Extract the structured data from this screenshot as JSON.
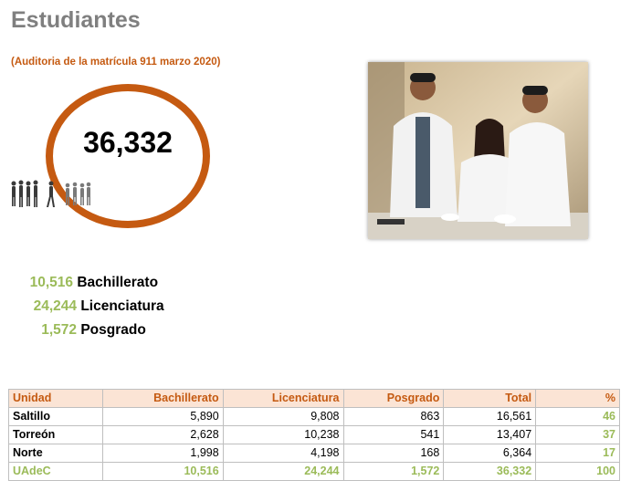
{
  "header": {
    "title": "Estudiantes",
    "subtitle": "(Auditoria de la matrícula 911 marzo 2020)"
  },
  "kpi": {
    "total": "36,332"
  },
  "icons": {
    "people": "walking-people-icon",
    "photo": "lab-students-photo"
  },
  "colors": {
    "accent_orange": "#c55a11",
    "accent_green": "#9bbb59",
    "header_fill": "#fbe4d5"
  },
  "summary": [
    {
      "value": "10,516",
      "label": "Bachillerato"
    },
    {
      "value": "24,244",
      "label": "Licenciatura"
    },
    {
      "value": "1,572",
      "label": "Posgrado"
    }
  ],
  "table": {
    "headers": [
      "Unidad",
      "Bachillerato",
      "Licenciatura",
      "Posgrado",
      "Total",
      "%"
    ],
    "rows": [
      [
        "Saltillo",
        "5,890",
        "9,808",
        "863",
        "16,561",
        "46"
      ],
      [
        "Torreón",
        "2,628",
        "10,238",
        "541",
        "13,407",
        "37"
      ],
      [
        "Norte",
        "1,998",
        "4,198",
        "168",
        "6,364",
        "17"
      ]
    ],
    "total_row": [
      "UAdeC",
      "10,516",
      "24,244",
      "1,572",
      "36,332",
      "100"
    ]
  }
}
